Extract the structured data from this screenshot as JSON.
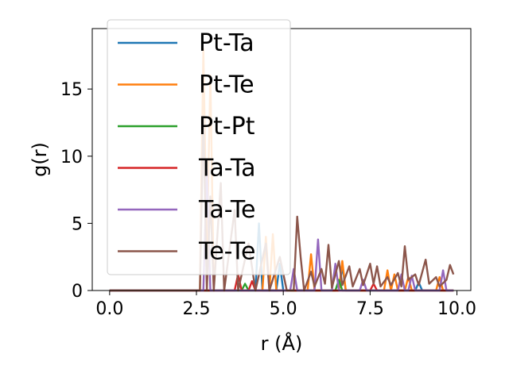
{
  "chart_data": {
    "type": "line",
    "title": "",
    "xlabel": "r (Å)",
    "ylabel": "g(r)",
    "xlim": [
      -0.5,
      10.4
    ],
    "ylim": [
      0,
      19.5
    ],
    "xticks": [
      0.0,
      2.5,
      5.0,
      7.5,
      10.0
    ],
    "xtick_labels": [
      "0.0",
      "2.5",
      "5.0",
      "7.5",
      "10.0"
    ],
    "yticks": [
      0,
      5,
      10,
      15
    ],
    "ytick_labels": [
      "0",
      "5",
      "10",
      "15"
    ],
    "grid": false,
    "legend_position": "upper-left",
    "series": [
      {
        "name": "Pt-Ta",
        "color": "#1f77b4",
        "points": [
          [
            0.0,
            0
          ],
          [
            2.6,
            0
          ],
          [
            2.7,
            0
          ],
          [
            2.8,
            0
          ],
          [
            2.9,
            0
          ],
          [
            4.2,
            0
          ],
          [
            4.3,
            5.0
          ],
          [
            4.4,
            0
          ],
          [
            4.8,
            0
          ],
          [
            4.9,
            2.0
          ],
          [
            5.0,
            0
          ],
          [
            6.6,
            0
          ],
          [
            6.7,
            1.8
          ],
          [
            6.8,
            0
          ],
          [
            8.8,
            0
          ],
          [
            8.9,
            0.6
          ],
          [
            9.0,
            0
          ],
          [
            9.9,
            0
          ]
        ]
      },
      {
        "name": "Pt-Te",
        "color": "#ff7f0e",
        "points": [
          [
            0.0,
            0
          ],
          [
            2.6,
            0
          ],
          [
            2.7,
            18.0
          ],
          [
            2.8,
            3.0
          ],
          [
            2.9,
            16.0
          ],
          [
            3.0,
            0
          ],
          [
            4.4,
            0
          ],
          [
            4.5,
            4.0
          ],
          [
            4.6,
            0
          ],
          [
            4.7,
            4.2
          ],
          [
            4.8,
            0
          ],
          [
            5.7,
            0
          ],
          [
            5.8,
            2.7
          ],
          [
            5.9,
            0
          ],
          [
            6.6,
            0
          ],
          [
            6.7,
            2.2
          ],
          [
            6.8,
            0
          ],
          [
            7.9,
            0
          ],
          [
            8.0,
            1.5
          ],
          [
            8.1,
            0
          ],
          [
            8.2,
            1.2
          ],
          [
            8.3,
            0
          ],
          [
            8.5,
            0
          ],
          [
            8.6,
            1.0
          ],
          [
            8.7,
            0
          ],
          [
            9.4,
            0
          ],
          [
            9.5,
            1.0
          ],
          [
            9.6,
            0
          ],
          [
            9.9,
            0
          ]
        ]
      },
      {
        "name": "Pt-Pt",
        "color": "#2ca02c",
        "points": [
          [
            0.0,
            0
          ],
          [
            3.8,
            0
          ],
          [
            3.9,
            0.5
          ],
          [
            4.0,
            0
          ],
          [
            6.5,
            0
          ],
          [
            6.6,
            0.8
          ],
          [
            6.7,
            0
          ],
          [
            9.9,
            0
          ]
        ]
      },
      {
        "name": "Ta-Ta",
        "color": "#d62728",
        "points": [
          [
            0.0,
            0
          ],
          [
            3.6,
            0
          ],
          [
            3.7,
            1.2
          ],
          [
            3.8,
            0
          ],
          [
            4.0,
            0
          ],
          [
            4.1,
            0.7
          ],
          [
            4.2,
            0
          ],
          [
            7.5,
            0
          ],
          [
            7.6,
            0.5
          ],
          [
            7.7,
            0
          ],
          [
            9.9,
            0
          ]
        ]
      },
      {
        "name": "Ta-Te",
        "color": "#9467bd",
        "points": [
          [
            0.0,
            0
          ],
          [
            2.7,
            0
          ],
          [
            2.8,
            9.0
          ],
          [
            2.9,
            0
          ],
          [
            5.2,
            0
          ],
          [
            5.3,
            1.6
          ],
          [
            5.4,
            0
          ],
          [
            5.9,
            0
          ],
          [
            6.0,
            3.8
          ],
          [
            6.1,
            0
          ],
          [
            6.4,
            0
          ],
          [
            6.5,
            2.0
          ],
          [
            6.6,
            0
          ],
          [
            7.2,
            0
          ],
          [
            7.3,
            0.8
          ],
          [
            7.4,
            0
          ],
          [
            8.3,
            0
          ],
          [
            8.4,
            1.2
          ],
          [
            8.5,
            0
          ],
          [
            8.6,
            0
          ],
          [
            8.7,
            1.1
          ],
          [
            8.8,
            0
          ],
          [
            9.5,
            0
          ],
          [
            9.6,
            1.5
          ],
          [
            9.7,
            0
          ],
          [
            9.9,
            0
          ]
        ]
      },
      {
        "name": "Te-Te",
        "color": "#8c564b",
        "points": [
          [
            0.0,
            0
          ],
          [
            2.6,
            0
          ],
          [
            2.7,
            13.0
          ],
          [
            2.8,
            0
          ],
          [
            2.9,
            7.0
          ],
          [
            3.0,
            0
          ],
          [
            3.2,
            8.0
          ],
          [
            3.3,
            0
          ],
          [
            3.6,
            6.0
          ],
          [
            3.7,
            0
          ],
          [
            4.0,
            3.5
          ],
          [
            4.2,
            0
          ],
          [
            4.5,
            3.5
          ],
          [
            4.6,
            0
          ],
          [
            4.9,
            2.5
          ],
          [
            5.1,
            0
          ],
          [
            5.3,
            0
          ],
          [
            5.4,
            5.5
          ],
          [
            5.5,
            2.5
          ],
          [
            5.6,
            0
          ],
          [
            5.8,
            1.4
          ],
          [
            5.9,
            0.3
          ],
          [
            6.1,
            1.6
          ],
          [
            6.2,
            0.5
          ],
          [
            6.3,
            3.4
          ],
          [
            6.4,
            0.2
          ],
          [
            6.6,
            2.2
          ],
          [
            6.7,
            0.4
          ],
          [
            6.9,
            1.8
          ],
          [
            7.0,
            0.3
          ],
          [
            7.2,
            1.6
          ],
          [
            7.3,
            0.4
          ],
          [
            7.5,
            2.0
          ],
          [
            7.6,
            0.5
          ],
          [
            7.7,
            1.8
          ],
          [
            7.8,
            0.3
          ],
          [
            8.0,
            1.0
          ],
          [
            8.1,
            0.4
          ],
          [
            8.3,
            1.3
          ],
          [
            8.4,
            0.3
          ],
          [
            8.5,
            3.3
          ],
          [
            8.6,
            0.8
          ],
          [
            8.8,
            1.2
          ],
          [
            8.9,
            0.4
          ],
          [
            9.1,
            2.3
          ],
          [
            9.2,
            0.5
          ],
          [
            9.4,
            1.0
          ],
          [
            9.5,
            0.3
          ],
          [
            9.7,
            0.8
          ],
          [
            9.8,
            1.9
          ],
          [
            9.9,
            1.2
          ]
        ]
      }
    ]
  }
}
